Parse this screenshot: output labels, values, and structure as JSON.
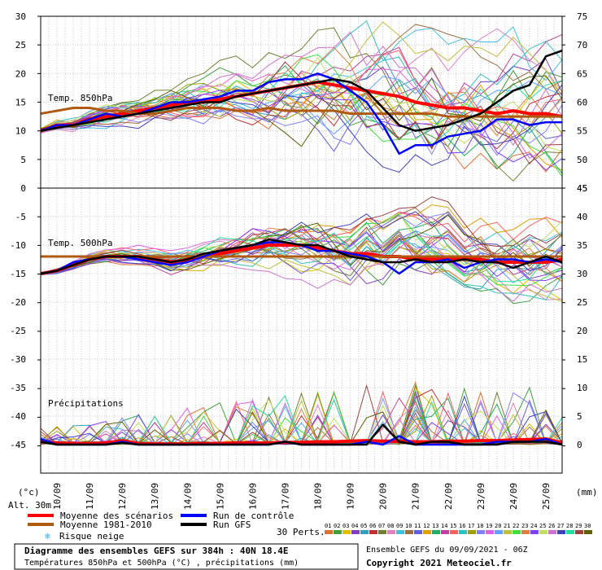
{
  "chart_data": {
    "type": "line",
    "title": "Diagramme des ensembles GEFS sur 384h : 40N 18.4E",
    "subtitle": "Températures 850hPa et 500hPa (°C) , précipitations (mm)",
    "x_tick_labels": [
      "10/09",
      "11/09",
      "12/09",
      "13/09",
      "14/09",
      "15/09",
      "16/09",
      "17/09",
      "18/09",
      "19/09",
      "20/09",
      "21/09",
      "22/09",
      "23/09",
      "24/09",
      "25/09"
    ],
    "x_days": [
      0,
      16
    ],
    "left_unit": "(°c)",
    "right_unit": "(mm)",
    "altitude": "Alt. 30m",
    "panels": [
      {
        "name": "Temp. 850hPa",
        "ylim": [
          0,
          30
        ],
        "left_ticks": [
          0,
          5,
          10,
          15,
          20,
          25,
          30
        ],
        "right_ticks": [
          45,
          50,
          55,
          60,
          65,
          70,
          75
        ],
        "series": [
          {
            "name": "Moyenne des scénarios",
            "color": "#ff0000",
            "x": [
              0,
              0.5,
              1,
              1.5,
              2,
              2.5,
              3,
              3.5,
              4,
              4.5,
              5,
              5.5,
              6,
              6.5,
              7,
              7.5,
              8,
              8.5,
              9,
              9.5,
              10,
              10.5,
              11,
              11.5,
              12,
              12.5,
              13,
              13.5,
              14,
              14.5,
              15,
              15.5,
              16
            ],
            "y": [
              10,
              11,
              11,
              12,
              12.5,
              13,
              13.5,
              14,
              14.5,
              15,
              15,
              15.5,
              16,
              16.5,
              17,
              17.5,
              18,
              18.5,
              18,
              17.5,
              17,
              16.5,
              16,
              15,
              14.5,
              14,
              14,
              13.5,
              13,
              13.5,
              13,
              13,
              12.5
            ]
          },
          {
            "name": "Moyenne 1981-2010",
            "color": "#b05a10",
            "x": [
              0,
              0.5,
              1,
              1.5,
              2,
              2.5,
              3,
              3.5,
              4,
              4.5,
              5,
              5.5,
              6,
              6.5,
              7,
              7.5,
              8,
              8.5,
              9,
              9.5,
              10,
              10.5,
              11,
              11.5,
              12,
              12.5,
              13,
              13.5,
              14,
              14.5,
              15,
              15.5,
              16
            ],
            "y": [
              13,
              13.5,
              14,
              14,
              13.5,
              13.5,
              13,
              13,
              13.5,
              14,
              14,
              14,
              13.5,
              13.5,
              14,
              13.5,
              13.5,
              13.5,
              13.5,
              13,
              13,
              13,
              13,
              13,
              13,
              12.5,
              12.5,
              12.5,
              12.5,
              12.5,
              12.5,
              12.5,
              12.5
            ]
          },
          {
            "name": "Run de contrôle",
            "color": "#0000ff",
            "x": [
              0,
              0.5,
              1,
              1.5,
              2,
              2.5,
              3,
              3.5,
              4,
              4.5,
              5,
              5.5,
              6,
              6.5,
              7,
              7.5,
              8,
              8.5,
              9,
              9.5,
              10,
              10.5,
              11,
              11.5,
              12,
              12.5,
              13,
              13.5,
              14,
              14.5,
              15,
              15.5,
              16
            ],
            "y": [
              10,
              11,
              11,
              12,
              13,
              12.5,
              13,
              14,
              15,
              15,
              15.5,
              16,
              17,
              17,
              18.5,
              19,
              19,
              20,
              19,
              17,
              15,
              11,
              6,
              7.5,
              7.5,
              9,
              9.5,
              10,
              12,
              12,
              11,
              11.5,
              11.5
            ]
          },
          {
            "name": "Run GFS",
            "color": "#000000",
            "x": [
              0,
              0.5,
              1,
              1.5,
              2,
              2.5,
              3,
              3.5,
              4,
              4.5,
              5,
              5.5,
              6,
              6.5,
              7,
              7.5,
              8,
              8.5,
              9,
              9.5,
              10,
              10.5,
              11,
              11.5,
              12,
              12.5,
              13,
              13.5,
              14,
              14.5,
              15,
              15.5,
              16
            ],
            "y": [
              10,
              10.5,
              11,
              11.5,
              12,
              12.5,
              13,
              13.5,
              14,
              14.5,
              15,
              15,
              16,
              16.5,
              17,
              17.5,
              18,
              18.5,
              19,
              18.5,
              17,
              14,
              11,
              10,
              10.5,
              11,
              12,
              13,
              15,
              17,
              18,
              23,
              24
            ]
          }
        ]
      },
      {
        "name": "Temp. 500hPa",
        "ylim": [
          -45,
          0
        ],
        "left_ticks": [
          -45,
          -40,
          -35,
          -30,
          -25,
          -20,
          -15,
          -10,
          -5
        ],
        "right_ticks": [
          0,
          5,
          10,
          15,
          20,
          25,
          30,
          35,
          40,
          45
        ],
        "series": [
          {
            "name": "Moyenne des scénarios",
            "color": "#ff0000",
            "x": [
              0,
              0.5,
              1,
              1.5,
              2,
              2.5,
              3,
              3.5,
              4,
              4.5,
              5,
              5.5,
              6,
              6.5,
              7,
              7.5,
              8,
              8.5,
              9,
              9.5,
              10,
              10.5,
              11,
              11.5,
              12,
              12.5,
              13,
              13.5,
              14,
              14.5,
              15,
              15.5,
              16
            ],
            "y": [
              -15,
              -14.5,
              -13.5,
              -12.5,
              -12,
              -12,
              -12,
              -12.5,
              -13,
              -12.5,
              -12,
              -11.5,
              -11,
              -10.5,
              -10,
              -10,
              -10,
              -10.5,
              -11,
              -11.5,
              -11.5,
              -12,
              -12,
              -12.5,
              -12.5,
              -12.5,
              -12.5,
              -12.5,
              -13,
              -13,
              -13,
              -13,
              -12.5
            ]
          },
          {
            "name": "Moyenne 1981-2010",
            "color": "#b05a10",
            "x": [
              0,
              1,
              2,
              3,
              4,
              5,
              6,
              7,
              8,
              9,
              10,
              11,
              12,
              13,
              14,
              15,
              16
            ],
            "y": [
              -12,
              -12,
              -12,
              -12,
              -12,
              -12,
              -12,
              -12,
              -12,
              -12,
              -12,
              -12,
              -12,
              -12,
              -12,
              -12,
              -12
            ]
          },
          {
            "name": "Run de contrôle",
            "color": "#0000ff",
            "x": [
              0,
              0.5,
              1,
              1.5,
              2,
              2.5,
              3,
              3.5,
              4,
              4.5,
              5,
              5.5,
              6,
              6.5,
              7,
              7.5,
              8,
              8.5,
              9,
              9.5,
              10,
              10.5,
              11,
              11.5,
              12,
              12.5,
              13,
              13.5,
              14,
              14.5,
              15,
              15.5,
              16
            ],
            "y": [
              -15,
              -14.5,
              -13,
              -12.5,
              -12,
              -12,
              -12.5,
              -13,
              -13.5,
              -13,
              -12,
              -11,
              -10.5,
              -10,
              -9.5,
              -9.5,
              -10,
              -11,
              -11,
              -11.5,
              -12,
              -13,
              -15,
              -13,
              -13,
              -12.5,
              -14,
              -13,
              -12.5,
              -12.5,
              -13,
              -12.5,
              -13
            ]
          },
          {
            "name": "Run GFS",
            "color": "#000000",
            "x": [
              0,
              0.5,
              1,
              1.5,
              2,
              2.5,
              3,
              3.5,
              4,
              4.5,
              5,
              5.5,
              6,
              6.5,
              7,
              7.5,
              8,
              8.5,
              9,
              9.5,
              10,
              10.5,
              11,
              11.5,
              12,
              12.5,
              13,
              13.5,
              14,
              14.5,
              15,
              15.5,
              16
            ],
            "y": [
              -15,
              -14.5,
              -13.5,
              -12.5,
              -12,
              -12,
              -12,
              -12.5,
              -13,
              -12.5,
              -11.5,
              -11,
              -10.5,
              -10,
              -9,
              -9.5,
              -10,
              -10,
              -11,
              -12,
              -12.5,
              -13,
              -13,
              -12.5,
              -13,
              -13,
              -12.5,
              -13,
              -13,
              -14,
              -13,
              -12,
              -13
            ]
          }
        ]
      },
      {
        "name": "Précipitations",
        "ylim": [
          0,
          45
        ],
        "series": [
          {
            "name": "Moyenne des scénarios",
            "color": "#ff0000",
            "x": [
              0,
              0.5,
              1,
              1.5,
              2,
              2.5,
              3,
              3.5,
              4,
              4.5,
              5,
              5.5,
              6,
              6.5,
              7,
              7.5,
              8,
              8.5,
              9,
              9.5,
              10,
              10.5,
              11,
              11.5,
              12,
              12.5,
              13,
              13.5,
              14,
              14.5,
              15,
              15.5,
              16
            ],
            "y": [
              0.5,
              0.3,
              0.2,
              0.2,
              0.3,
              0.7,
              0.2,
              0.1,
              0.1,
              0.1,
              0.2,
              0.2,
              0.3,
              0.3,
              0.3,
              0.4,
              0.4,
              0.5,
              0.5,
              0.6,
              0.7,
              0.6,
              0.6,
              0.5,
              0.5,
              0.6,
              0.6,
              0.7,
              0.7,
              0.8,
              0.9,
              1.0,
              0.3
            ]
          },
          {
            "name": "Run de contrôle",
            "color": "#0000ff",
            "x": [
              0,
              0.5,
              1,
              1.5,
              2,
              2.5,
              3,
              3.5,
              4,
              4.5,
              5,
              5.5,
              6,
              6.5,
              7,
              7.5,
              8,
              8.5,
              9,
              9.5,
              10,
              10.5,
              11,
              11.5,
              12,
              12.5,
              13,
              13.5,
              14,
              14.5,
              15,
              15.5,
              16
            ],
            "y": [
              1,
              0,
              0,
              0,
              0,
              0.5,
              0,
              0,
              0,
              0,
              0,
              0,
              0,
              0,
              0,
              0.5,
              0,
              0,
              0,
              0,
              0.5,
              0,
              1.5,
              0,
              0,
              0,
              0,
              0,
              0.5,
              0.5,
              0.5,
              1,
              0
            ]
          },
          {
            "name": "Run GFS",
            "color": "#000000",
            "x": [
              0,
              0.5,
              1,
              1.5,
              2,
              2.5,
              3,
              3.5,
              4,
              4.5,
              5,
              5.5,
              6,
              6.5,
              7,
              7.5,
              8,
              8.5,
              9,
              9.5,
              10,
              10.5,
              11,
              11.5,
              12,
              12.5,
              13,
              13.5,
              14,
              14.5,
              15,
              15.5,
              16
            ],
            "y": [
              0.5,
              0,
              0,
              0,
              0,
              0.3,
              0,
              0,
              0,
              0,
              0,
              0,
              0,
              0,
              0,
              0.5,
              0,
              0,
              0,
              0,
              0,
              3.5,
              0.5,
              0,
              0.5,
              0.5,
              0,
              0,
              0,
              0.5,
              0.5,
              0.5,
              0
            ]
          }
        ]
      }
    ],
    "legend": [
      {
        "label": "Moyenne des scénarios",
        "color": "#ff0000"
      },
      {
        "label": "Moyenne 1981-2010",
        "color": "#b05a10"
      },
      {
        "label": "Run de contrôle",
        "color": "#0000ff"
      },
      {
        "label": "Run GFS",
        "color": "#000000"
      }
    ],
    "snow_risk": {
      "label": "Risque neige",
      "color": "#4aa8ff"
    },
    "perts_label": "30 Perts.",
    "pert_ids": [
      "01",
      "02",
      "03",
      "04",
      "05",
      "06",
      "07",
      "08",
      "09",
      "10",
      "11",
      "12",
      "13",
      "14",
      "15",
      "16",
      "17",
      "18",
      "19",
      "20",
      "21",
      "22",
      "23",
      "24",
      "25",
      "26",
      "27",
      "28",
      "29",
      "30"
    ],
    "pert_colors": [
      "#e07030",
      "#40a040",
      "#e0c000",
      "#8040c0",
      "#30a0c0",
      "#c03030",
      "#708030",
      "#e080c0",
      "#40c0e0",
      "#a07040",
      "#6060e0",
      "#e0a000",
      "#20b060",
      "#c040a0",
      "#ff6060",
      "#30c0c0",
      "#a0a000",
      "#8080ff",
      "#e060e0",
      "#60a0ff",
      "#c0c040",
      "#40e040",
      "#e08040",
      "#8040ff",
      "#c0e060",
      "#d070d0",
      "#4040c0",
      "#20e0a0",
      "#a04040",
      "#606000"
    ],
    "run_info": "Ensemble GEFS du 09/09/2021 - 06Z",
    "copyright": "Copyright 2021 Meteociel.fr"
  }
}
